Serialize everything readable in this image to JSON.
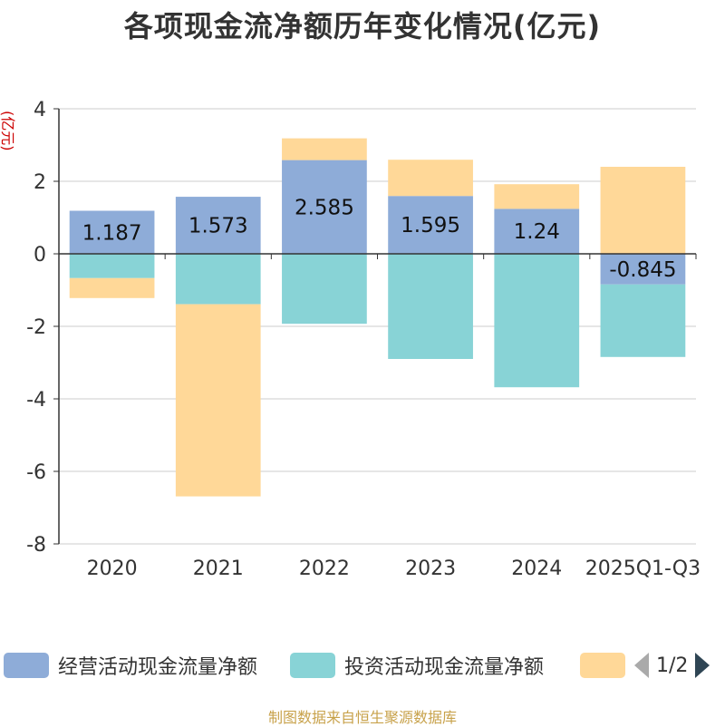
{
  "chart_data": {
    "type": "bar",
    "stacked": true,
    "title": "各项现金流净额历年变化情况(亿元)",
    "ylabel": "(亿元)",
    "ylim": [
      -8,
      4
    ],
    "yticks": [
      4,
      2,
      0,
      -2,
      -4,
      -6,
      -8
    ],
    "categories": [
      "2020",
      "2021",
      "2022",
      "2023",
      "2024",
      "2025Q1-Q3"
    ],
    "series": [
      {
        "name": "经营活动现金流量净额",
        "color": "#8eacd8",
        "values": [
          1.187,
          1.573,
          2.585,
          1.595,
          1.24,
          -0.845
        ]
      },
      {
        "name": "投资活动现金流量净额",
        "color": "#88d3d6",
        "values": [
          -0.67,
          -1.39,
          -1.93,
          -2.9,
          -3.68,
          -2.0
        ]
      },
      {
        "name": "",
        "color": "#ffd898",
        "values": [
          -0.55,
          -5.3,
          0.6,
          1.0,
          0.68,
          2.4
        ]
      }
    ],
    "data_labels": [
      "1.187",
      "1.573",
      "2.585",
      "1.595",
      "1.24",
      "-0.845"
    ],
    "legend_position": "bottom",
    "pager": "1/2"
  },
  "source": "制图数据来自恒生聚源数据库"
}
